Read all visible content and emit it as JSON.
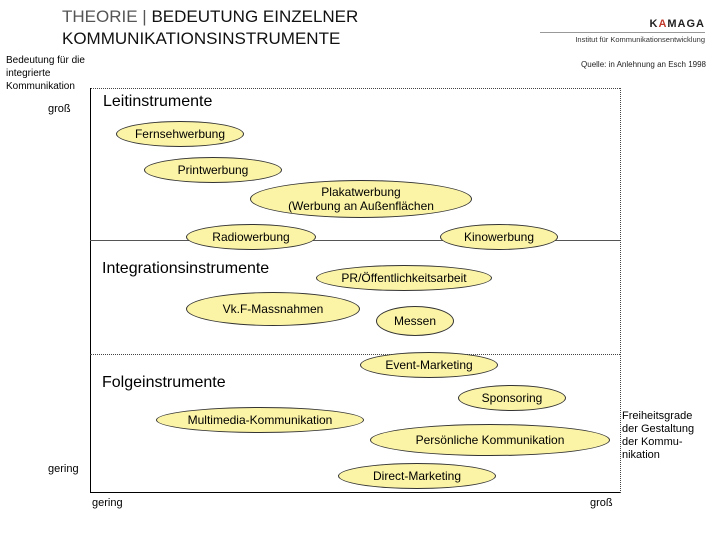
{
  "header": {
    "title_prefix": "THEORIE | ",
    "title_line1": "BEDEUTUNG EINZELNER",
    "title_line2": "KOMMUNIKATIONSINSTRUMENTE"
  },
  "logo": {
    "brand_prefix": "K",
    "brand_accent": "A",
    "brand_suffix": "MAGA",
    "subtitle": "Institut für Kommunikationsentwicklung"
  },
  "source": "Quelle: in Anlehnung an Esch 1998",
  "axes": {
    "y_label_line1": "Bedeutung für die",
    "y_label_line2": "integrierte",
    "y_label_line3": "Kommunikation",
    "y_high": "groß",
    "y_low": "gering",
    "x_low": "gering",
    "x_high": "groß",
    "x_label_line1": "Freiheitsgrade",
    "x_label_line2": "der Gestaltung",
    "x_label_line3": "der Kommu-",
    "x_label_line4": "nikation"
  },
  "sections": {
    "lead": "Leitinstrumente",
    "integration": "Integrationsinstrumente",
    "follow": "Folgeinstrumente"
  },
  "instruments": {
    "tv": "Fernsehwerbung",
    "print": "Printwerbung",
    "poster_line1": "Plakatwerbung",
    "poster_line2": "(Werbung an Außenflächen",
    "radio": "Radiowerbung",
    "cinema": "Kinowerbung",
    "pr": "PR/Öffentlichkeitsarbeit",
    "vkf": "Vk.F-Massnahmen",
    "fairs": "Messen",
    "event": "Event-Marketing",
    "sponsoring": "Sponsoring",
    "multimedia": "Multimedia-Kommunikation",
    "personal": "Persönliche Kommunikation",
    "direct": "Direct-Marketing"
  },
  "colors": {
    "ellipse_fill": "#fbf3a6",
    "ellipse_border": "#333333"
  }
}
